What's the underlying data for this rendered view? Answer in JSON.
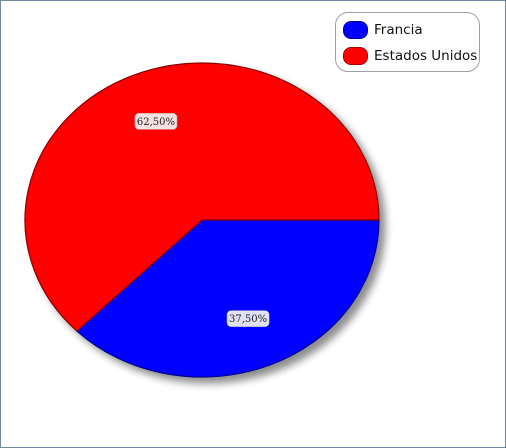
{
  "chart_data": {
    "type": "pie",
    "title": "",
    "categories": [
      "Francia",
      "Estados Unidos"
    ],
    "values": [
      37.5,
      62.5
    ],
    "labels": [
      "37,50%",
      "62,50%"
    ],
    "colors": [
      "#0000ff",
      "#ff0000"
    ],
    "legend_position": "top-right"
  }
}
